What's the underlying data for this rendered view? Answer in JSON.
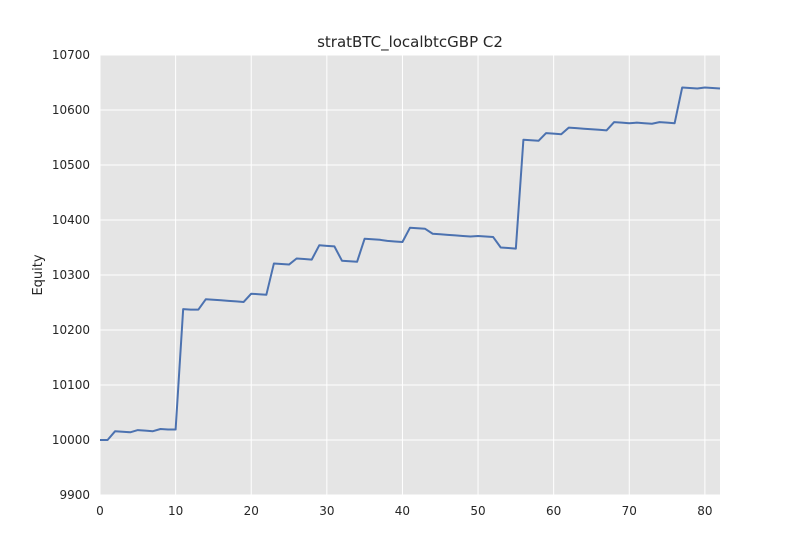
{
  "chart_data": {
    "type": "line",
    "title": "stratBTC_localbtcGBP C2",
    "xlabel": "",
    "ylabel": "Equity",
    "xlim": [
      0,
      82
    ],
    "ylim": [
      9900,
      10700
    ],
    "xticks": [
      0,
      10,
      20,
      30,
      40,
      50,
      60,
      70,
      80
    ],
    "yticks": [
      9900,
      10000,
      10100,
      10200,
      10300,
      10400,
      10500,
      10600,
      10700
    ],
    "grid": true,
    "legend": "none",
    "colors": {
      "background": "#e5e5e5",
      "grid": "#ffffff",
      "line": "#4c72b0"
    },
    "series": [
      {
        "x": [
          0,
          1,
          2,
          3,
          4,
          5,
          6,
          7,
          8,
          9,
          10,
          11,
          12,
          13,
          14,
          15,
          16,
          17,
          18,
          19,
          20,
          21,
          22,
          23,
          24,
          25,
          26,
          27,
          28,
          29,
          30,
          31,
          32,
          33,
          34,
          35,
          36,
          37,
          38,
          39,
          40,
          41,
          42,
          43,
          44,
          45,
          46,
          47,
          48,
          49,
          50,
          51,
          52,
          53,
          54,
          55,
          56,
          57,
          58,
          59,
          60,
          61,
          62,
          63,
          64,
          65,
          66,
          67,
          68,
          69,
          70,
          71,
          72,
          73,
          74,
          75,
          76,
          77,
          78,
          79,
          80,
          81,
          82
        ],
        "values": [
          10000,
          10000,
          10016,
          10015,
          10014,
          10018,
          10017,
          10016,
          10020,
          10019,
          10019,
          10238,
          10237,
          10237,
          10256,
          10255,
          10254,
          10253,
          10252,
          10251,
          10266,
          10265,
          10264,
          10321,
          10320,
          10319,
          10330,
          10329,
          10328,
          10354,
          10353,
          10352,
          10326,
          10325,
          10324,
          10366,
          10365,
          10364,
          10362,
          10361,
          10360,
          10386,
          10385,
          10384,
          10375,
          10374,
          10373,
          10372,
          10371,
          10370,
          10371,
          10370,
          10369,
          10350,
          10349,
          10348,
          10546,
          10545,
          10544,
          10558,
          10557,
          10556,
          10568,
          10567,
          10566,
          10565,
          10564,
          10563,
          10578,
          10577,
          10576,
          10577,
          10576,
          10575,
          10578,
          10577,
          10576,
          10641,
          10640,
          10639,
          10641,
          10640,
          10639
        ]
      }
    ]
  }
}
